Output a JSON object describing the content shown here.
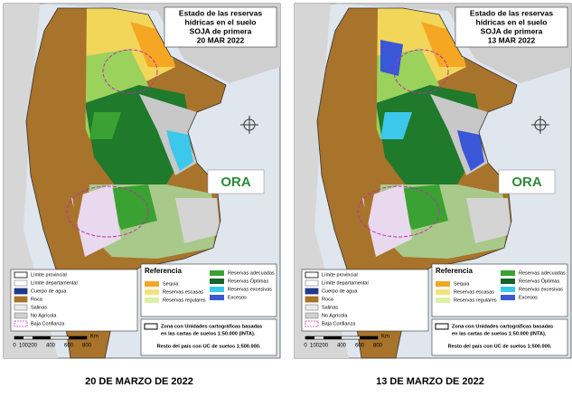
{
  "maps": [
    {
      "title_lines": [
        "Estado de las reservas",
        "hídricas en el suelo",
        "SOJA de primera",
        "20 MAR 2022"
      ],
      "caption": "20 DE MARZO DE 2022"
    },
    {
      "title_lines": [
        "Estado de las reservas",
        "hídricas en el suelo",
        "SOJA de primera",
        "13 MAR 2022"
      ],
      "caption": "13 DE MARZO DE 2022"
    }
  ],
  "logo": "ORA",
  "base_legend": [
    "Límite provincial",
    "Límite departamental",
    "Cuerpo de agua",
    "Roca",
    "Salinas",
    "No Agrícola",
    "Baja Confianza"
  ],
  "reference": {
    "heading": "Referencia",
    "items": [
      "Sequía",
      "Reservas escasas",
      "Reservas regulares",
      "Reservas adecuadas",
      "Reservas Óptimas",
      "Reservas excesivas",
      "Excesos"
    ]
  },
  "zone_note": [
    "Zona con Unidades cartográficas basadas",
    "en las cartas de suelos 1:50.000 (INTA).",
    "Resto del país con UC de suelos 1:500.000."
  ],
  "scale": {
    "labels": [
      0,
      100,
      200,
      400,
      600,
      800
    ],
    "unit": "Km"
  }
}
